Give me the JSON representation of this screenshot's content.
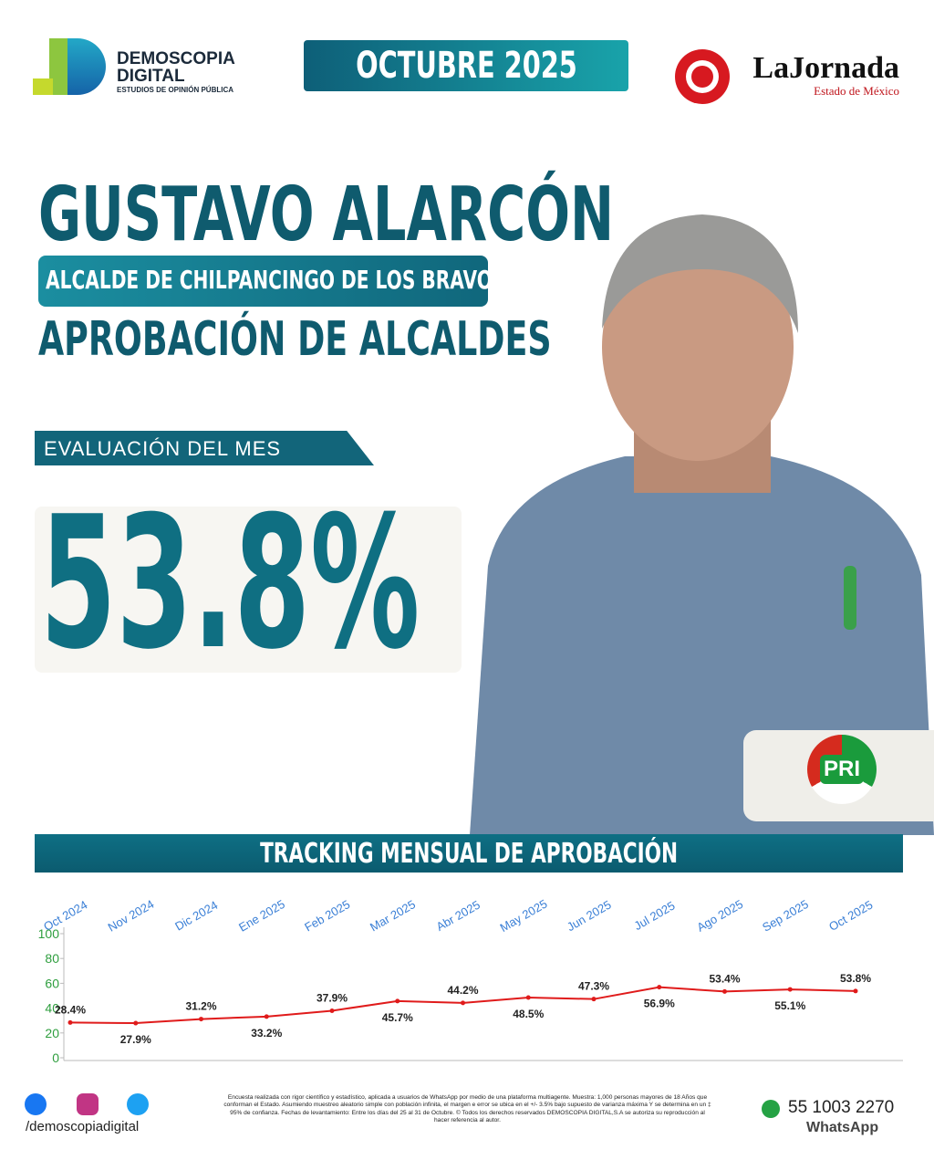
{
  "header": {
    "brand": "DEMOSCOPIA",
    "brand2": "DIGITAL",
    "brand_sub": "ESTUDIOS DE OPINIÓN PÚBLICA",
    "date": "OCTUBRE 2025",
    "partner": "LaJornada",
    "partner_sub": "Estado de México"
  },
  "person": {
    "name": "GUSTAVO ALARCÓN",
    "role": "ALCALDE DE CHILPANCINGO DE LOS BRAVO",
    "survey": "APROBACIÓN DE ALCALDES"
  },
  "evaluation": {
    "label": "EVALUACIÓN DEL MES",
    "value": "53.8%"
  },
  "party": "PRI",
  "chart_data": {
    "type": "line",
    "title": "TRACKING MENSUAL DE APROBACIÓN",
    "categories": [
      "Oct 2024",
      "Nov 2024",
      "Dic 2024",
      "Ene 2025",
      "Feb 2025",
      "Mar 2025",
      "Abr 2025",
      "May 2025",
      "Jun 2025",
      "Jul 2025",
      "Ago 2025",
      "Sep 2025",
      "Oct 2025"
    ],
    "values": [
      28.4,
      27.9,
      31.2,
      33.2,
      37.9,
      45.7,
      44.2,
      48.5,
      47.3,
      56.9,
      53.4,
      55.1,
      53.8
    ],
    "value_labels": [
      "28.4%",
      "27.9%",
      "31.2%",
      "33.2%",
      "37.9%",
      "45.7%",
      "44.2%",
      "48.5%",
      "47.3%",
      "56.9%",
      "53.4%",
      "55.1%",
      "53.8%"
    ],
    "color": "#e01b1b",
    "ylim": [
      0,
      100
    ],
    "yticks": [
      0,
      20,
      40,
      60,
      80,
      100
    ],
    "grid": false
  },
  "footer": {
    "social": "/demoscopiadigital",
    "note": "Encuesta realizada con rigor científico y estadístico, aplicada a usuarios de WhatsApp por medio de una plataforma multiagente. Muestra: 1,000 personas mayores de 18 Años que conforman el Estado. Asumiendo muestreo aleatorio simple con población infinita, el margen e error se ubica en el +/- 3.5% bajo supuesto de varianza máxima Y se determina en un ‡ 95% de confianza. Fechas de levantamiento: Entre los días del 25 al 31 de Octubre. © Todos los derechos reservados DEMOSCOPIA DIGITAL,S.A se autoriza su reproducción al hacer referencia al autor.",
    "phone": "55 1003 2270",
    "phone_label": "WhatsApp"
  }
}
